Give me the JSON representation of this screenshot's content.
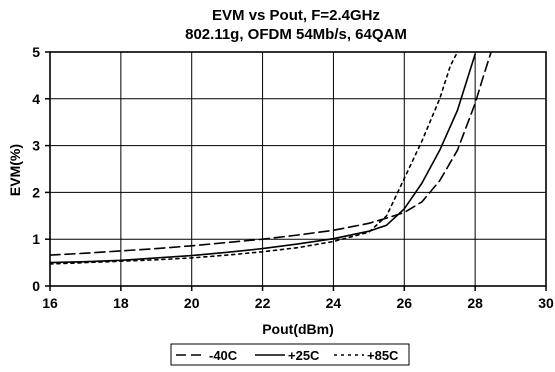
{
  "chart_data": {
    "type": "line",
    "title": "EVM vs Pout, F=2.4GHz",
    "subtitle": "802.11g, OFDM 54Mb/s, 64QAM",
    "xlabel": "Pout(dBm)",
    "ylabel": "EVM(%)",
    "xlim": [
      16,
      30
    ],
    "ylim": [
      0,
      5
    ],
    "x_ticks": [
      16,
      18,
      20,
      22,
      24,
      26,
      28,
      30
    ],
    "y_ticks": [
      0,
      1,
      2,
      3,
      4,
      5
    ],
    "grid": true,
    "legend_position": "bottom",
    "series": [
      {
        "name": "-40C",
        "line_style": "dashed",
        "color": "#000000",
        "points": [
          [
            16,
            0.66
          ],
          [
            17,
            0.7
          ],
          [
            18,
            0.75
          ],
          [
            19,
            0.8
          ],
          [
            20,
            0.86
          ],
          [
            21,
            0.93
          ],
          [
            22,
            1.0
          ],
          [
            23,
            1.09
          ],
          [
            24,
            1.19
          ],
          [
            25,
            1.34
          ],
          [
            25.5,
            1.45
          ],
          [
            26,
            1.57
          ],
          [
            26.5,
            1.8
          ],
          [
            27,
            2.25
          ],
          [
            27.5,
            2.9
          ],
          [
            28,
            3.9
          ],
          [
            28.2,
            4.4
          ],
          [
            28.45,
            5.0
          ]
        ]
      },
      {
        "name": "+25C",
        "line_style": "solid",
        "color": "#000000",
        "points": [
          [
            16,
            0.5
          ],
          [
            17,
            0.52
          ],
          [
            18,
            0.55
          ],
          [
            19,
            0.6
          ],
          [
            20,
            0.65
          ],
          [
            21,
            0.72
          ],
          [
            22,
            0.8
          ],
          [
            23,
            0.9
          ],
          [
            24,
            1.01
          ],
          [
            25,
            1.17
          ],
          [
            25.5,
            1.3
          ],
          [
            26,
            1.65
          ],
          [
            26.5,
            2.2
          ],
          [
            27,
            2.9
          ],
          [
            27.5,
            3.75
          ],
          [
            28,
            4.95
          ]
        ]
      },
      {
        "name": "+85C",
        "line_style": "dotted",
        "color": "#000000",
        "points": [
          [
            16,
            0.47
          ],
          [
            17,
            0.5
          ],
          [
            18,
            0.53
          ],
          [
            19,
            0.56
          ],
          [
            20,
            0.6
          ],
          [
            21,
            0.66
          ],
          [
            22,
            0.73
          ],
          [
            23,
            0.82
          ],
          [
            24,
            0.95
          ],
          [
            25,
            1.15
          ],
          [
            25.5,
            1.5
          ],
          [
            26,
            2.3
          ],
          [
            26.5,
            3.1
          ],
          [
            27,
            4.0
          ],
          [
            27.3,
            4.7
          ],
          [
            27.5,
            5.0
          ]
        ]
      }
    ]
  }
}
